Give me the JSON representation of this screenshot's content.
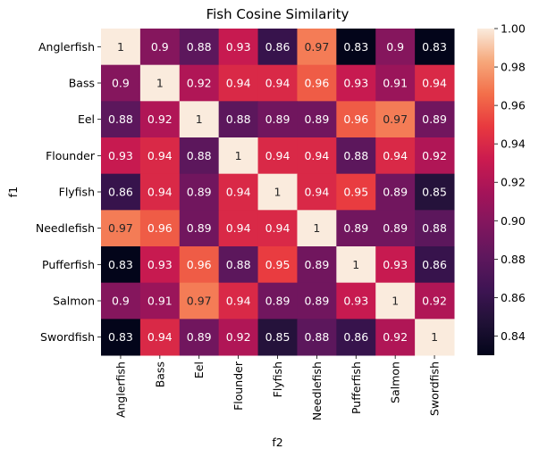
{
  "chart_data": {
    "type": "heatmap",
    "title": "Fish Cosine Similarity",
    "xlabel": "f2",
    "ylabel": "f1",
    "rows": [
      "Anglerfish",
      "Bass",
      "Eel",
      "Flounder",
      "Flyfish",
      "Needlefish",
      "Pufferfish",
      "Salmon",
      "Swordfish"
    ],
    "cols": [
      "Anglerfish",
      "Bass",
      "Eel",
      "Flounder",
      "Flyfish",
      "Needlefish",
      "Pufferfish",
      "Salmon",
      "Swordfish"
    ],
    "values": [
      [
        1,
        0.9,
        0.88,
        0.93,
        0.86,
        0.97,
        0.83,
        0.9,
        0.83
      ],
      [
        0.9,
        1,
        0.92,
        0.94,
        0.94,
        0.96,
        0.93,
        0.91,
        0.94
      ],
      [
        0.88,
        0.92,
        1,
        0.88,
        0.89,
        0.89,
        0.96,
        0.97,
        0.89
      ],
      [
        0.93,
        0.94,
        0.88,
        1,
        0.94,
        0.94,
        0.88,
        0.94,
        0.92
      ],
      [
        0.86,
        0.94,
        0.89,
        0.94,
        1,
        0.94,
        0.95,
        0.89,
        0.85
      ],
      [
        0.97,
        0.96,
        0.89,
        0.94,
        0.94,
        1,
        0.89,
        0.89,
        0.88
      ],
      [
        0.83,
        0.93,
        0.96,
        0.88,
        0.95,
        0.89,
        1,
        0.93,
        0.86
      ],
      [
        0.9,
        0.91,
        0.97,
        0.94,
        0.89,
        0.89,
        0.93,
        1,
        0.92
      ],
      [
        0.83,
        0.94,
        0.89,
        0.92,
        0.85,
        0.88,
        0.86,
        0.92,
        1
      ]
    ],
    "colorbar": {
      "min": 0.83,
      "max": 1.0,
      "ticks": [
        0.84,
        0.86,
        0.88,
        0.9,
        0.92,
        0.94,
        0.96,
        0.98,
        1.0
      ],
      "tick_labels": [
        "0.84",
        "0.86",
        "0.88",
        "0.90",
        "0.92",
        "0.94",
        "0.96",
        "0.98",
        "1.00"
      ],
      "colormap": "rocket"
    }
  }
}
